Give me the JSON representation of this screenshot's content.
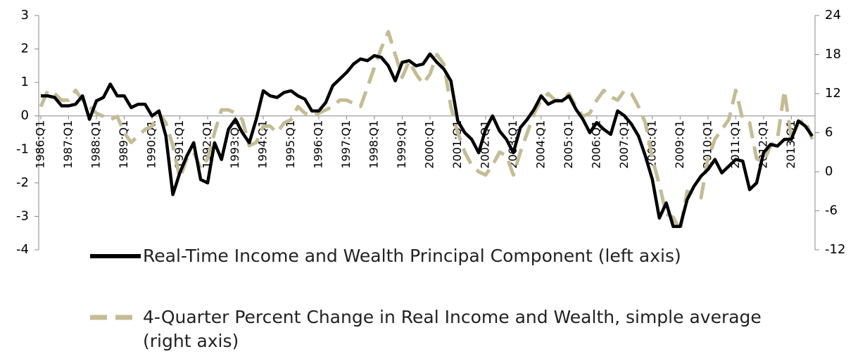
{
  "chart_data": {
    "type": "line",
    "categories": [
      "1986:Q1",
      null,
      null,
      null,
      "1987:Q1",
      null,
      null,
      null,
      "1988:Q1",
      null,
      null,
      null,
      "1989:Q1",
      null,
      null,
      null,
      "1990:Q1",
      null,
      null,
      null,
      "1991:Q1",
      null,
      null,
      null,
      "1992:Q1",
      null,
      null,
      null,
      "1993:Q1",
      null,
      null,
      null,
      "1994:Q1",
      null,
      null,
      null,
      "1995:Q1",
      null,
      null,
      null,
      "1996:Q1",
      null,
      null,
      null,
      "1997:Q1",
      null,
      null,
      null,
      "1998:Q1",
      null,
      null,
      null,
      "1999:Q1",
      null,
      null,
      null,
      "2000:Q1",
      null,
      null,
      null,
      "2001:Q1",
      null,
      null,
      null,
      "2002:Q1",
      null,
      null,
      null,
      "2003:Q1",
      null,
      null,
      null,
      "2004:Q1",
      null,
      null,
      null,
      "2005:Q1",
      null,
      null,
      null,
      "2006:Q1",
      null,
      null,
      null,
      "2007:Q1",
      null,
      null,
      null,
      "2008:Q1",
      null,
      null,
      null,
      "2009:Q1",
      null,
      null,
      null,
      "2010:Q1",
      null,
      null,
      null,
      "2011:Q1",
      null,
      null,
      null,
      "2012:Q1",
      null,
      null,
      null,
      "2013:Q1",
      null,
      null,
      null
    ],
    "series": [
      {
        "name": "Real-Time Income and Wealth Principal Component (left axis)",
        "color": "#000000",
        "dashed": false,
        "axis": "y",
        "values": [
          0.6,
          0.6,
          0.55,
          0.3,
          0.3,
          0.35,
          0.6,
          -0.1,
          0.45,
          0.55,
          0.95,
          0.6,
          0.6,
          0.25,
          0.35,
          0.35,
          0.0,
          0.15,
          -0.6,
          -2.35,
          -1.7,
          -1.2,
          -0.8,
          -1.9,
          -2.0,
          -0.8,
          -1.3,
          -0.4,
          -0.1,
          -0.5,
          -0.8,
          -0.1,
          0.75,
          0.6,
          0.55,
          0.7,
          0.75,
          0.6,
          0.5,
          0.15,
          0.15,
          0.4,
          0.9,
          1.1,
          1.3,
          1.55,
          1.7,
          1.65,
          1.8,
          1.75,
          1.5,
          1.05,
          1.6,
          1.65,
          1.5,
          1.55,
          1.85,
          1.6,
          1.4,
          1.05,
          -0.15,
          -0.5,
          -0.7,
          -1.1,
          -0.4,
          0.0,
          -0.45,
          -0.7,
          -1.1,
          -0.35,
          -0.1,
          0.2,
          0.6,
          0.35,
          0.45,
          0.45,
          0.6,
          0.2,
          -0.1,
          -0.5,
          -0.2,
          -0.4,
          -0.55,
          0.15,
          0.0,
          -0.25,
          -0.6,
          -1.2,
          -1.9,
          -3.05,
          -2.6,
          -3.3,
          -3.3,
          -2.5,
          -2.1,
          -1.8,
          -1.6,
          -1.3,
          -1.7,
          -1.5,
          -1.3,
          -1.35,
          -2.2,
          -2.0,
          -1.1,
          -0.85,
          -0.9,
          -0.7,
          -0.7,
          -0.15,
          -0.3,
          -0.6
        ]
      },
      {
        "name": "4-Quarter Percent Change in Real Income and Wealth, simple average (right axis)",
        "color": "#c4bc96",
        "dashed": true,
        "axis": "y2",
        "values": [
          10,
          12.5,
          12,
          11,
          11,
          12.5,
          11,
          10,
          9,
          8.5,
          8,
          8.5,
          6,
          4.5,
          5.5,
          6.5,
          7,
          9,
          7.5,
          4,
          -1,
          2,
          3,
          0.5,
          2,
          6,
          9.5,
          9.5,
          9,
          8,
          4,
          4.5,
          7,
          7,
          6,
          7.5,
          8,
          10,
          9,
          8.5,
          9,
          9.5,
          10,
          11,
          11,
          10.5,
          10,
          13,
          16,
          19,
          21.5,
          18,
          14.5,
          17,
          15,
          13.5,
          15,
          18,
          16.5,
          10,
          6,
          3,
          1,
          0,
          -0.5,
          1,
          3,
          2.5,
          -0.5,
          3,
          6,
          9,
          11,
          12,
          11,
          11,
          12,
          10,
          8.5,
          9,
          11,
          12.5,
          11.5,
          11,
          12.5,
          12,
          10,
          7.5,
          2,
          -2,
          -6.5,
          -7,
          -9,
          -3,
          -3.5,
          -4,
          2,
          5,
          6.5,
          8,
          12.5,
          8,
          7.5,
          2,
          1.5,
          4,
          5,
          12.5,
          5,
          7.5,
          8,
          5
        ]
      }
    ],
    "ylim": [
      -4,
      3
    ],
    "yticks": [
      -4,
      -3,
      -2,
      -1,
      0,
      1,
      2,
      3
    ],
    "y2lim": [
      -12,
      24
    ],
    "y2ticks": [
      -12,
      -6,
      0,
      6,
      12,
      18,
      24
    ]
  }
}
